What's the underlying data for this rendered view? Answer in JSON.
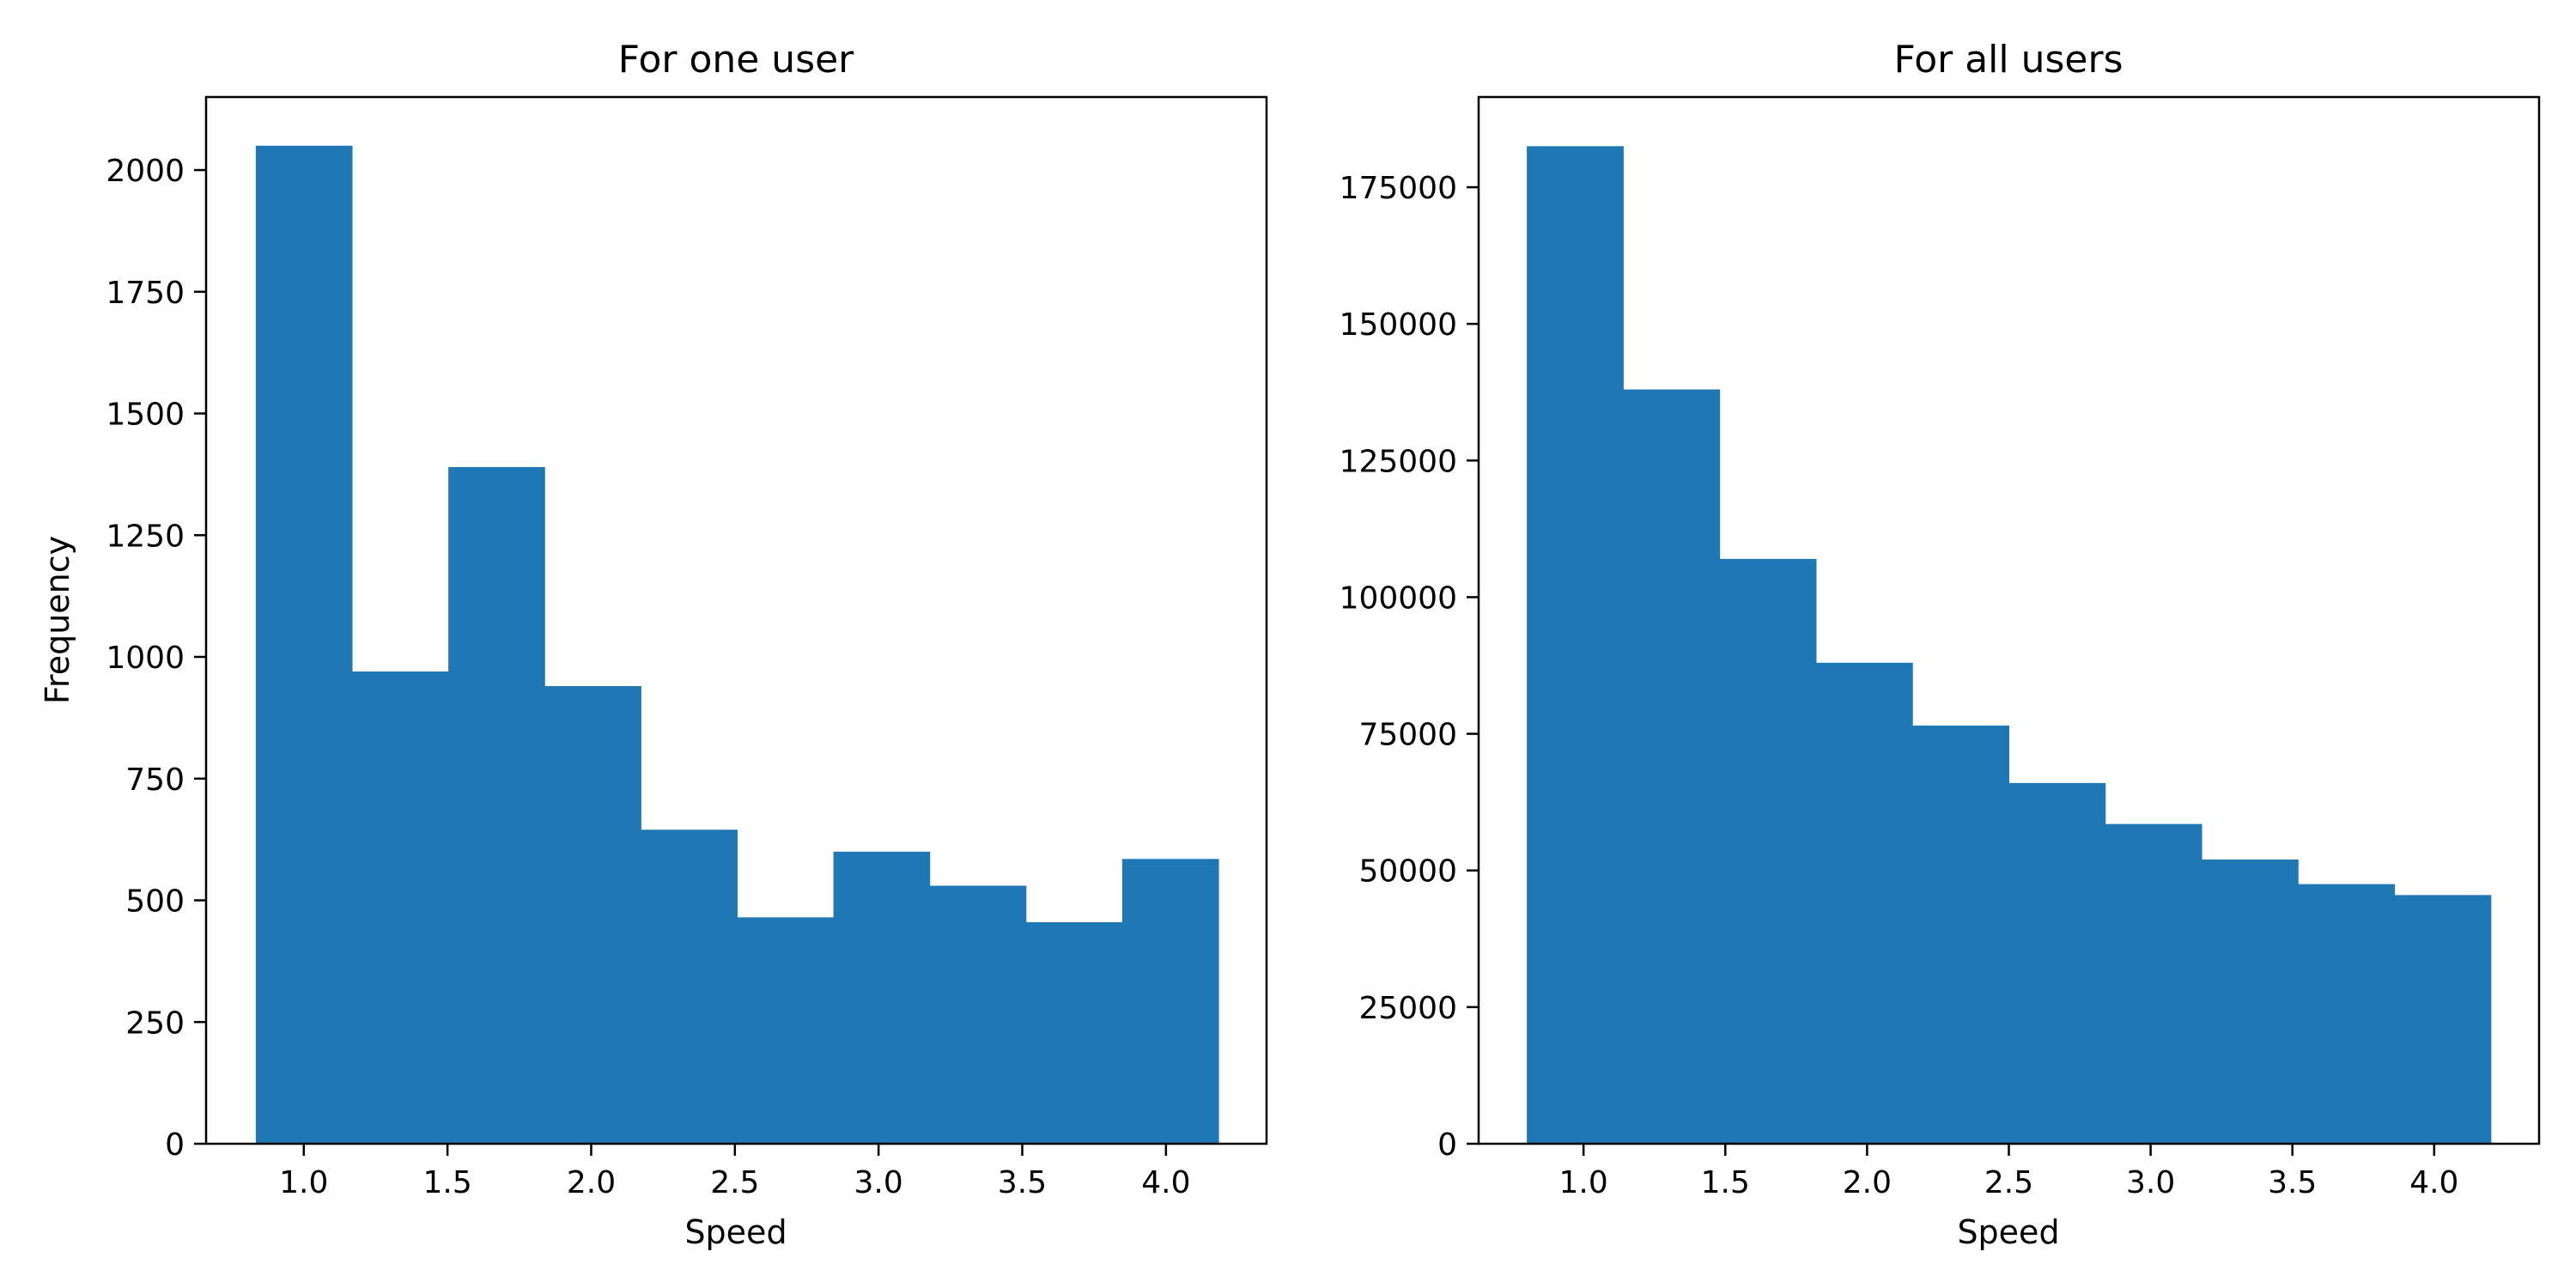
{
  "chart_data": [
    {
      "type": "bar",
      "title": "For one user",
      "xlabel": "Speed",
      "ylabel": "Frequency",
      "bin_edges": [
        0.833,
        1.168,
        1.503,
        1.838,
        2.173,
        2.508,
        2.843,
        3.178,
        3.513,
        3.848,
        4.183
      ],
      "values": [
        2050,
        970,
        1390,
        940,
        645,
        465,
        600,
        530,
        455,
        585
      ],
      "xlim": [
        0.66,
        4.35
      ],
      "ylim": [
        0,
        2150
      ],
      "xticks": [
        1.0,
        1.5,
        2.0,
        2.5,
        3.0,
        3.5,
        4.0
      ],
      "xtick_labels": [
        "1.0",
        "1.5",
        "2.0",
        "2.5",
        "3.0",
        "3.5",
        "4.0"
      ],
      "yticks": [
        0,
        250,
        500,
        750,
        1000,
        1250,
        1500,
        1750,
        2000
      ],
      "ytick_labels": [
        "0",
        "250",
        "500",
        "750",
        "1000",
        "1250",
        "1500",
        "1750",
        "2000"
      ],
      "color": "#1f77b4",
      "grid": false,
      "legend": false
    },
    {
      "type": "bar",
      "title": "For all users",
      "xlabel": "Speed",
      "ylabel": "",
      "bin_edges": [
        0.8,
        1.14,
        1.48,
        1.82,
        2.16,
        2.5,
        2.84,
        3.18,
        3.52,
        3.86,
        4.2
      ],
      "values": [
        182500,
        138000,
        107000,
        88000,
        76500,
        66000,
        58500,
        52000,
        47500,
        45500
      ],
      "xlim": [
        0.63,
        4.37
      ],
      "ylim": [
        0,
        191500
      ],
      "xticks": [
        1.0,
        1.5,
        2.0,
        2.5,
        3.0,
        3.5,
        4.0
      ],
      "xtick_labels": [
        "1.0",
        "1.5",
        "2.0",
        "2.5",
        "3.0",
        "3.5",
        "4.0"
      ],
      "yticks": [
        0,
        25000,
        50000,
        75000,
        100000,
        125000,
        150000,
        175000
      ],
      "ytick_labels": [
        "0",
        "25000",
        "50000",
        "75000",
        "100000",
        "125000",
        "150000",
        "175000"
      ],
      "color": "#1f77b4",
      "grid": false,
      "legend": false
    }
  ]
}
